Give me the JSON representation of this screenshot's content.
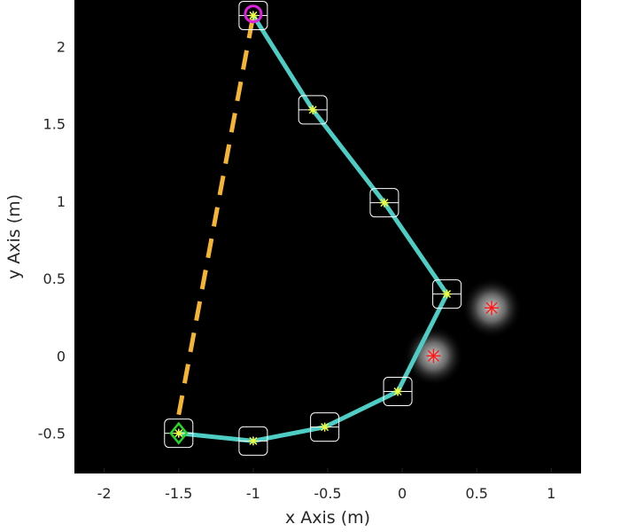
{
  "chart_data": {
    "type": "scatter",
    "xlabel": "x Axis (m)",
    "ylabel": "y Axis (m)",
    "xlim": [
      -2.2,
      1.2
    ],
    "ylim": [
      -0.76,
      2.3
    ],
    "x_ticks": [
      -2,
      -1.5,
      -1,
      -0.5,
      0,
      0.5,
      1
    ],
    "x_tick_labels": [
      "-2",
      "-1.5",
      "-1",
      "-0.5",
      "0",
      "0.5",
      "1"
    ],
    "y_ticks": [
      -0.5,
      0,
      0.5,
      1,
      1.5,
      2
    ],
    "y_tick_labels": [
      "-0.5",
      "0",
      "0.5",
      "1",
      "1.5",
      "2"
    ],
    "background": "#000000",
    "grid": false,
    "series": [
      {
        "kind": "dashed-line",
        "color": "#f5b533",
        "points": [
          [
            -1.5,
            -0.38
          ],
          [
            -1.0,
            2.2
          ]
        ]
      },
      {
        "kind": "trajectory",
        "color": "#4ecdc4",
        "points": [
          [
            -1.5,
            -0.5
          ],
          [
            -1.0,
            -0.55
          ],
          [
            -0.52,
            -0.46
          ],
          [
            -0.03,
            -0.23
          ],
          [
            0.3,
            0.4
          ],
          [
            -0.12,
            0.99
          ],
          [
            -0.6,
            1.59
          ],
          [
            -1.0,
            2.2
          ]
        ]
      },
      {
        "kind": "waypoints",
        "marker": "yellow-asterisk-in-white-box",
        "color": "#f0ff3c",
        "points": [
          [
            -1.5,
            -0.5
          ],
          [
            -1.0,
            -0.55
          ],
          [
            -0.52,
            -0.46
          ],
          [
            -0.03,
            -0.23
          ],
          [
            0.3,
            0.4
          ],
          [
            -0.12,
            0.99
          ],
          [
            -0.6,
            1.59
          ],
          [
            -1.0,
            2.2
          ]
        ]
      },
      {
        "kind": "obstacles",
        "marker": "red-asterisk-with-glow",
        "color": "#ff1a1a",
        "points": [
          [
            0.21,
            0.0
          ],
          [
            0.6,
            0.31
          ]
        ]
      },
      {
        "kind": "start",
        "marker": "diamond",
        "color": "#22dd22",
        "points": [
          [
            -1.5,
            -0.5
          ]
        ]
      },
      {
        "kind": "goal",
        "marker": "circle",
        "color": "#e020e0",
        "points": [
          [
            -1.0,
            2.21
          ]
        ]
      }
    ]
  }
}
